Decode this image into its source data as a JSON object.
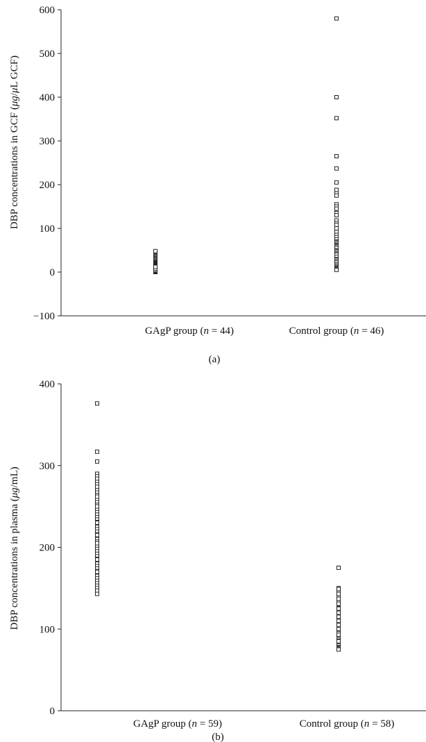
{
  "chart_data": [
    {
      "type": "scatter",
      "panel_label": "(a)",
      "ylabel_pre": "DBP concentrations in GCF (",
      "ylabel_mu1": "μg",
      "ylabel_mid": "/",
      "ylabel_mu2": "μ",
      "ylabel_post": "L GCF)",
      "ylim": [
        -100,
        600
      ],
      "yticks": [
        -100,
        0,
        100,
        200,
        300,
        400,
        500,
        600
      ],
      "yticks_labels": [
        "−100",
        "0",
        "100",
        "200",
        "300",
        "400",
        "500",
        "600"
      ],
      "categories": [
        {
          "pre": "GAgP group (",
          "n": "n",
          "post": " = 44)"
        },
        {
          "pre": "Control group (",
          "n": "n",
          "post": " = 46)"
        }
      ],
      "series": [
        {
          "category": 0,
          "values": [
            0,
            1,
            2,
            3,
            4,
            5,
            6,
            7,
            8,
            9,
            10,
            11,
            12,
            13,
            14,
            15,
            16,
            17,
            18,
            19,
            20,
            21,
            22,
            23,
            24,
            25,
            26,
            27,
            28,
            29,
            30,
            32,
            34,
            36,
            38,
            40,
            42,
            44,
            46,
            48,
            3,
            5,
            8,
            12
          ]
        },
        {
          "category": 1,
          "values": [
            580,
            400,
            352,
            265,
            237,
            205,
            188,
            180,
            175,
            155,
            150,
            145,
            135,
            130,
            118,
            112,
            108,
            100,
            92,
            85,
            80,
            75,
            70,
            68,
            65,
            62,
            60,
            58,
            55,
            50,
            48,
            45,
            42,
            40,
            35,
            30,
            28,
            25,
            22,
            18,
            15,
            12,
            10,
            8,
            6,
            5
          ]
        }
      ]
    },
    {
      "type": "scatter",
      "panel_label": "(b)",
      "ylabel_pre": "DBP concentrations in plasma (",
      "ylabel_mu1": "μg",
      "ylabel_post": "/mL)",
      "ylim": [
        0,
        400
      ],
      "yticks": [
        0,
        100,
        200,
        300,
        400
      ],
      "yticks_labels": [
        "0",
        "100",
        "200",
        "300",
        "400"
      ],
      "categories": [
        {
          "pre": "GAgP group (",
          "n": "n",
          "post": " = 59)"
        },
        {
          "pre": "Control group (",
          "n": "n",
          "post": " = 58)"
        }
      ],
      "series": [
        {
          "category": 0,
          "values": [
            376,
            317,
            305,
            290,
            287,
            284,
            280,
            277,
            274,
            270,
            267,
            264,
            261,
            258,
            255,
            252,
            249,
            246,
            243,
            240,
            237,
            234,
            231,
            228,
            225,
            222,
            219,
            216,
            213,
            210,
            207,
            204,
            201,
            198,
            195,
            192,
            189,
            186,
            183,
            180,
            177,
            174,
            171,
            168,
            165,
            162,
            159,
            156,
            153,
            150,
            147,
            143,
            170,
            185,
            205,
            215,
            230,
            250,
            262
          ]
        },
        {
          "category": 1,
          "values": [
            175,
            150,
            148,
            146,
            144,
            142,
            140,
            138,
            136,
            134,
            132,
            130,
            128,
            126,
            124,
            122,
            120,
            118,
            116,
            114,
            112,
            110,
            108,
            106,
            104,
            102,
            100,
            98,
            96,
            94,
            92,
            90,
            88,
            86,
            84,
            82,
            80,
            78,
            77,
            76,
            75,
            145,
            135,
            125,
            115,
            105,
            95,
            85,
            100,
            110,
            120,
            130,
            140,
            149,
            143,
            137,
            131,
            93
          ]
        }
      ]
    }
  ]
}
